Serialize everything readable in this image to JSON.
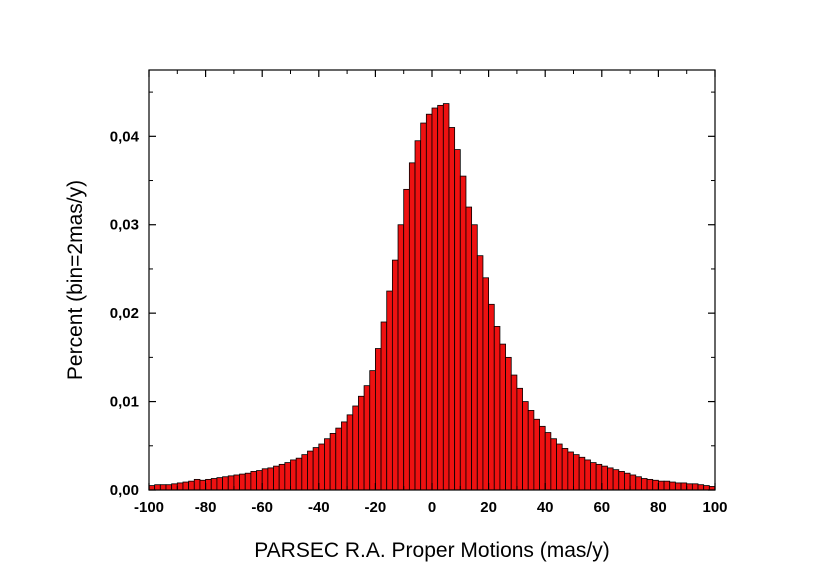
{
  "chart_data": {
    "type": "bar",
    "title": "",
    "xlabel": "PARSEC R.A. Proper Motions (mas/y)",
    "ylabel": "Percent (bin=2mas/y)",
    "xlim": [
      -100,
      100
    ],
    "ylim": [
      0,
      0.0475
    ],
    "x_ticks": [
      -100,
      -80,
      -60,
      -40,
      -20,
      0,
      20,
      40,
      60,
      80,
      100
    ],
    "x_tick_labels": [
      "-100",
      "-80",
      "-60",
      "-40",
      "-20",
      "0",
      "20",
      "40",
      "60",
      "80",
      "100"
    ],
    "y_ticks": [
      0,
      0.01,
      0.02,
      0.03,
      0.04
    ],
    "y_tick_labels": [
      "0,00",
      "0,01",
      "0,02",
      "0,03",
      "0,04"
    ],
    "bin_width": 2,
    "bar_color": "#ee1111",
    "bar_edge_color": "#000000",
    "grid": false,
    "x_centers": [
      -99,
      -97,
      -95,
      -93,
      -91,
      -89,
      -87,
      -85,
      -83,
      -81,
      -79,
      -77,
      -75,
      -73,
      -71,
      -69,
      -67,
      -65,
      -63,
      -61,
      -59,
      -57,
      -55,
      -53,
      -51,
      -49,
      -47,
      -45,
      -43,
      -41,
      -39,
      -37,
      -35,
      -33,
      -31,
      -29,
      -27,
      -25,
      -23,
      -21,
      -19,
      -17,
      -15,
      -13,
      -11,
      -9,
      -7,
      -5,
      -3,
      -1,
      1,
      3,
      5,
      7,
      9,
      11,
      13,
      15,
      17,
      19,
      21,
      23,
      25,
      27,
      29,
      31,
      33,
      35,
      37,
      39,
      41,
      43,
      45,
      47,
      49,
      51,
      53,
      55,
      57,
      59,
      61,
      63,
      65,
      67,
      69,
      71,
      73,
      75,
      77,
      79,
      81,
      83,
      85,
      87,
      89,
      91,
      93,
      95,
      97,
      99
    ],
    "values": [
      0.0005,
      0.0006,
      0.0006,
      0.0006,
      0.0007,
      0.0008,
      0.0009,
      0.001,
      0.0012,
      0.0011,
      0.0012,
      0.0013,
      0.0014,
      0.0015,
      0.0016,
      0.0017,
      0.0018,
      0.0019,
      0.0021,
      0.0022,
      0.0024,
      0.0025,
      0.0027,
      0.0029,
      0.0031,
      0.0034,
      0.0036,
      0.004,
      0.0044,
      0.0048,
      0.0052,
      0.0058,
      0.0064,
      0.007,
      0.0077,
      0.0085,
      0.0095,
      0.0106,
      0.0118,
      0.0135,
      0.016,
      0.019,
      0.0225,
      0.026,
      0.03,
      0.034,
      0.037,
      0.0395,
      0.0415,
      0.0425,
      0.0432,
      0.0435,
      0.0437,
      0.041,
      0.0385,
      0.0355,
      0.032,
      0.03,
      0.0265,
      0.024,
      0.021,
      0.0185,
      0.0165,
      0.015,
      0.013,
      0.0115,
      0.01,
      0.009,
      0.008,
      0.0072,
      0.0065,
      0.0058,
      0.0052,
      0.0047,
      0.0043,
      0.004,
      0.0037,
      0.0034,
      0.0031,
      0.0029,
      0.0027,
      0.0025,
      0.0023,
      0.0021,
      0.0019,
      0.0017,
      0.0015,
      0.0013,
      0.0012,
      0.0011,
      0.001,
      0.001,
      0.0009,
      0.0008,
      0.0008,
      0.0007,
      0.0007,
      0.0006,
      0.0005,
      0.0004
    ]
  }
}
